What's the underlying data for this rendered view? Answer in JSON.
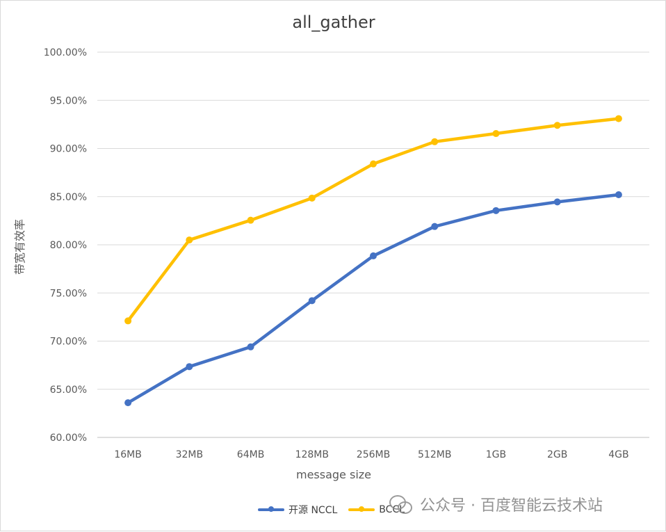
{
  "chart_data": {
    "type": "line",
    "title": "all_gather",
    "xlabel": "message size",
    "ylabel": "带宽有效率",
    "categories": [
      "16MB",
      "32MB",
      "64MB",
      "128MB",
      "256MB",
      "512MB",
      "1GB",
      "2GB",
      "4GB"
    ],
    "y_ticks": [
      "60.00%",
      "65.00%",
      "70.00%",
      "75.00%",
      "80.00%",
      "85.00%",
      "90.00%",
      "95.00%",
      "100.00%"
    ],
    "ylim": [
      60,
      100
    ],
    "grid": true,
    "legend_position": "bottom",
    "series": [
      {
        "name": "开源 NCCL",
        "color": "#4472c4",
        "values": [
          63.6,
          67.35,
          69.4,
          74.2,
          78.85,
          81.9,
          83.55,
          84.45,
          85.2
        ]
      },
      {
        "name": "BCCL",
        "color": "#ffc000",
        "values": [
          72.1,
          80.5,
          82.55,
          84.85,
          88.4,
          90.7,
          91.55,
          92.4,
          93.1
        ]
      }
    ]
  },
  "watermark": {
    "text": "公众号 · 百度智能云技术站",
    "icon": "wechat-icon"
  }
}
